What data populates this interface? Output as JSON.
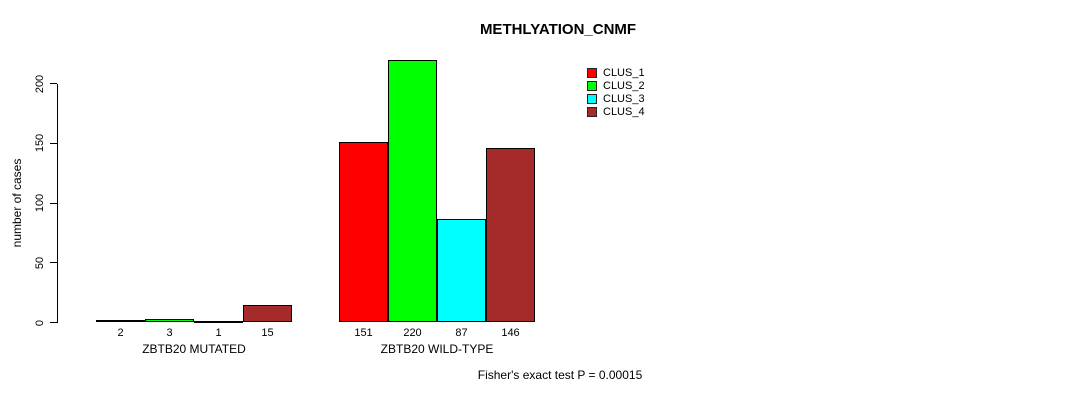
{
  "chart_data": {
    "type": "bar",
    "title": "METHLYATION_CNMF",
    "ylabel": "number of cases",
    "xlabel": "",
    "yticks": [
      0,
      50,
      100,
      150,
      200
    ],
    "ylim": [
      0,
      220
    ],
    "grid": false,
    "legend_position": "top-right",
    "categories": [
      "ZBTB20 MUTATED",
      "ZBTB20 WILD-TYPE"
    ],
    "series": [
      {
        "name": "CLUS_1",
        "color": "#ff0000",
        "values": [
          2,
          151
        ]
      },
      {
        "name": "CLUS_2",
        "color": "#00ff00",
        "values": [
          3,
          220
        ]
      },
      {
        "name": "CLUS_3",
        "color": "#00ffff",
        "values": [
          1,
          87
        ]
      },
      {
        "name": "CLUS_4",
        "color": "#a52a2a",
        "values": [
          15,
          146
        ]
      }
    ],
    "bar_value_labels": [
      [
        "2",
        "3",
        "1",
        "15"
      ],
      [
        "151",
        "220",
        "87",
        "146"
      ]
    ],
    "annotation": "Fisher's exact test P = 0.00015"
  }
}
